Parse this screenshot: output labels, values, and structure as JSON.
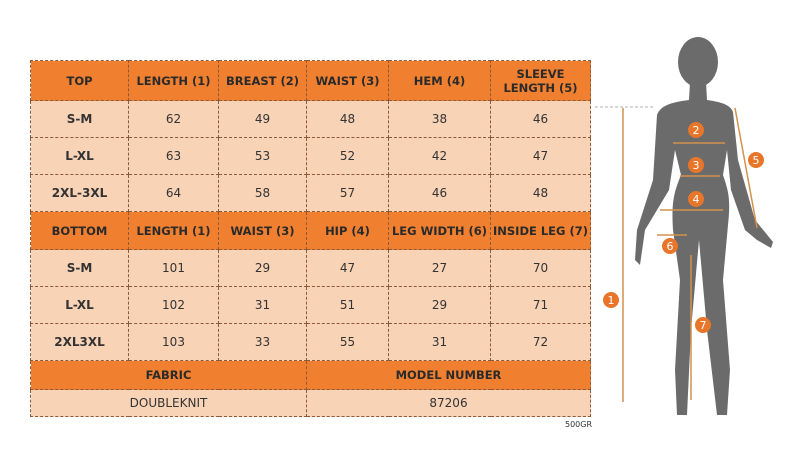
{
  "top": {
    "headers": [
      "TOP",
      "LENGTH (1)",
      "BREAST (2)",
      "WAIST (3)",
      "HEM (4)",
      "SLEEVE LENGTH (5)"
    ],
    "rows": [
      [
        "S-M",
        "62",
        "49",
        "48",
        "38",
        "46"
      ],
      [
        "L-XL",
        "63",
        "53",
        "52",
        "42",
        "47"
      ],
      [
        "2XL-3XL",
        "64",
        "58",
        "57",
        "46",
        "48"
      ]
    ]
  },
  "bottom": {
    "headers": [
      "BOTTOM",
      "LENGTH (1)",
      "WAIST (3)",
      "HIP (4)",
      "LEG WIDTH (6)",
      "INSIDE LEG (7)"
    ],
    "rows": [
      [
        "S-M",
        "101",
        "29",
        "47",
        "27",
        "70"
      ],
      [
        "L-XL",
        "102",
        "31",
        "51",
        "29",
        "71"
      ],
      [
        "2XL3XL",
        "103",
        "33",
        "55",
        "31",
        "72"
      ]
    ]
  },
  "footer": {
    "fabric_label": "FABRIC",
    "fabric_value": "DOUBLEKNIT",
    "model_label": "MODEL NUMBER",
    "model_value": "87206"
  },
  "code": "500GR",
  "figure": {
    "markers": [
      "1",
      "2",
      "3",
      "4",
      "5",
      "6",
      "7"
    ]
  },
  "colors": {
    "header": "#f0802f",
    "cell": "#f9d3b6",
    "silhouette": "#6b6b6b",
    "marker": "#e8762a"
  }
}
